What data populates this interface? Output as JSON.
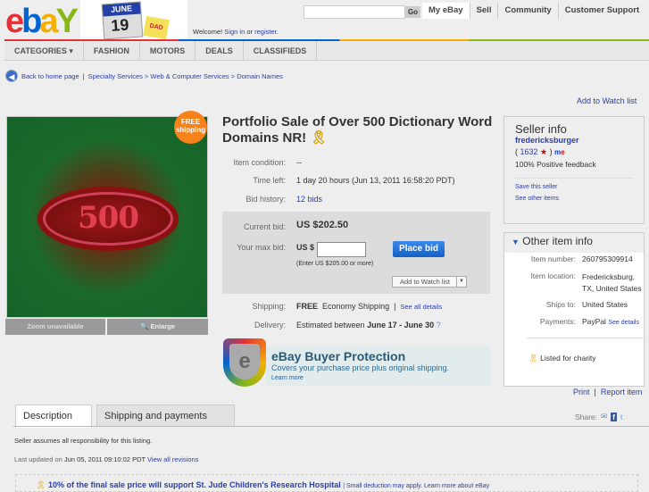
{
  "header": {
    "logo": "ebay",
    "doodle": {
      "month": "JUNE",
      "day": "19",
      "sticky": "DAD"
    },
    "search_go": "Go",
    "nav": [
      "My eBay",
      "Sell",
      "Community",
      "Customer Support"
    ],
    "welcome": "Welcome!",
    "sign_in": "Sign in",
    "or": "or",
    "register": "register."
  },
  "catbar": [
    "CATEGORIES ▾",
    "FASHION",
    "MOTORS",
    "DEALS",
    "CLASSIFIEDS"
  ],
  "breadcrumb": {
    "back": "Back to home page",
    "path": "Specialty Services > Web & Computer Services > Domain Names"
  },
  "add_watch_top": "Add to Watch list",
  "image": {
    "badge_line1": "FREE",
    "badge_line2": "shipping",
    "picture_text": "500",
    "zoom": "Zoom unavailable",
    "enlarge": "Enlarge"
  },
  "item": {
    "title": "Portfolio Sale of Over 500 Dictionary Word Domains NR!",
    "condition_label": "Item condition:",
    "condition": "--",
    "time_label": "Time left:",
    "time": "1 day 20 hours (Jun 13, 2011  16:58:20 PDT)",
    "history_label": "Bid history:",
    "history": "12 bids",
    "current_label": "Current bid:",
    "current": "US $202.50",
    "max_label": "Your max bid:",
    "currency": "US $",
    "max_value": "",
    "hint": "(Enter US $205.00 or more)",
    "place_bid": "Place bid",
    "watch_btn": "Add to Watch list",
    "shipping_label": "Shipping:",
    "shipping_free": "FREE",
    "shipping_method": "Economy Shipping",
    "see_all": "See all details",
    "delivery_label": "Delivery:",
    "delivery_pre": "Estimated between",
    "delivery_dates": "June 17 - June 30"
  },
  "buyer_protection": {
    "title": "eBay Buyer Protection",
    "text": "Covers your purchase price plus original shipping.",
    "learn": "Learn more"
  },
  "seller": {
    "heading": "Seller info",
    "name": "fredericksburger",
    "score": "1632",
    "feedback": "100% Positive feedback",
    "save": "Save this seller",
    "other": "See other items"
  },
  "other_info": {
    "heading": "Other item info",
    "number_label": "Item number:",
    "number": "260795309914",
    "location_label": "Item location:",
    "location": "Fredericksburg, TX, United States",
    "ships_label": "Ships to:",
    "ships": "United States",
    "payments_label": "Payments:",
    "payments": "PayPal",
    "see_details": "See details",
    "charity": "Listed for charity"
  },
  "print": "Print",
  "report": "Report item",
  "tabs": [
    "Description",
    "Shipping and payments"
  ],
  "share": "Share:",
  "description": {
    "responsibility": "Seller assumes all responsibility for this listing.",
    "updated_pre": "Last updated on",
    "updated": "Jun 05, 2011 09:10:02 PDT",
    "revisions": "View all revisions",
    "charity_text": "10% of the final sale price will support",
    "charity_org": "St. Jude Children's Research Hospital",
    "charity_note": "| Small deduction may apply. Learn more about eBay"
  }
}
